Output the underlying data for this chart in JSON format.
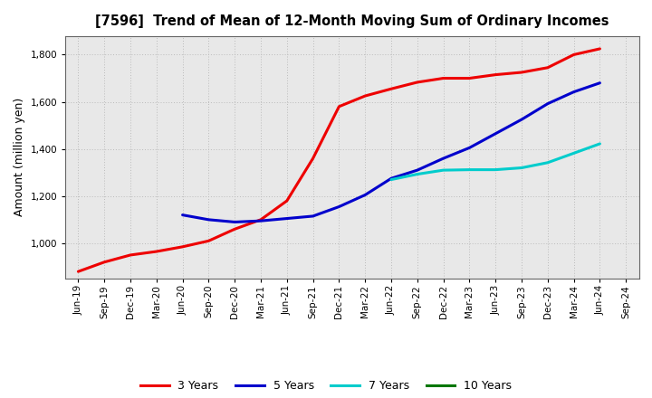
{
  "title": "[7596]  Trend of Mean of 12-Month Moving Sum of Ordinary Incomes",
  "ylabel": "Amount (million yen)",
  "background_color": "#ffffff",
  "plot_background": "#e8e8e8",
  "grid_color": "#bbbbbb",
  "ylim": [
    850,
    1880
  ],
  "yticks": [
    1000,
    1200,
    1400,
    1600,
    1800
  ],
  "x_labels": [
    "Jun-19",
    "Sep-19",
    "Dec-19",
    "Mar-20",
    "Jun-20",
    "Sep-20",
    "Dec-20",
    "Mar-21",
    "Jun-21",
    "Sep-21",
    "Dec-21",
    "Mar-22",
    "Jun-22",
    "Sep-22",
    "Dec-22",
    "Mar-23",
    "Jun-23",
    "Sep-23",
    "Dec-23",
    "Mar-24",
    "Jun-24",
    "Sep-24"
  ],
  "series": {
    "3 Years": {
      "color": "#ee0000",
      "data": [
        880,
        920,
        950,
        965,
        985,
        1010,
        1060,
        1100,
        1180,
        1360,
        1580,
        1625,
        1655,
        1683,
        1700,
        1700,
        1715,
        1725,
        1745,
        1800,
        1825,
        null
      ]
    },
    "5 Years": {
      "color": "#0000cc",
      "data": [
        null,
        null,
        null,
        null,
        1120,
        1100,
        1090,
        1095,
        1105,
        1115,
        1155,
        1205,
        1275,
        1310,
        1360,
        1405,
        1465,
        1525,
        1592,
        1642,
        1680,
        null
      ]
    },
    "7 Years": {
      "color": "#00cccc",
      "data": [
        null,
        null,
        null,
        null,
        null,
        null,
        null,
        null,
        null,
        null,
        null,
        null,
        1270,
        1293,
        1310,
        1312,
        1312,
        1320,
        1342,
        1382,
        1422,
        null
      ]
    },
    "10 Years": {
      "color": "#007700",
      "data": [
        null,
        null,
        null,
        null,
        null,
        null,
        null,
        null,
        null,
        null,
        null,
        null,
        null,
        null,
        null,
        null,
        null,
        null,
        null,
        null,
        null,
        null
      ]
    }
  },
  "legend_labels": [
    "3 Years",
    "5 Years",
    "7 Years",
    "10 Years"
  ],
  "legend_colors": [
    "#ee0000",
    "#0000cc",
    "#00cccc",
    "#007700"
  ],
  "title_fontsize": 10.5,
  "ylabel_fontsize": 9,
  "tick_fontsize": 7.5,
  "legend_fontsize": 9,
  "line_width": 2.2
}
